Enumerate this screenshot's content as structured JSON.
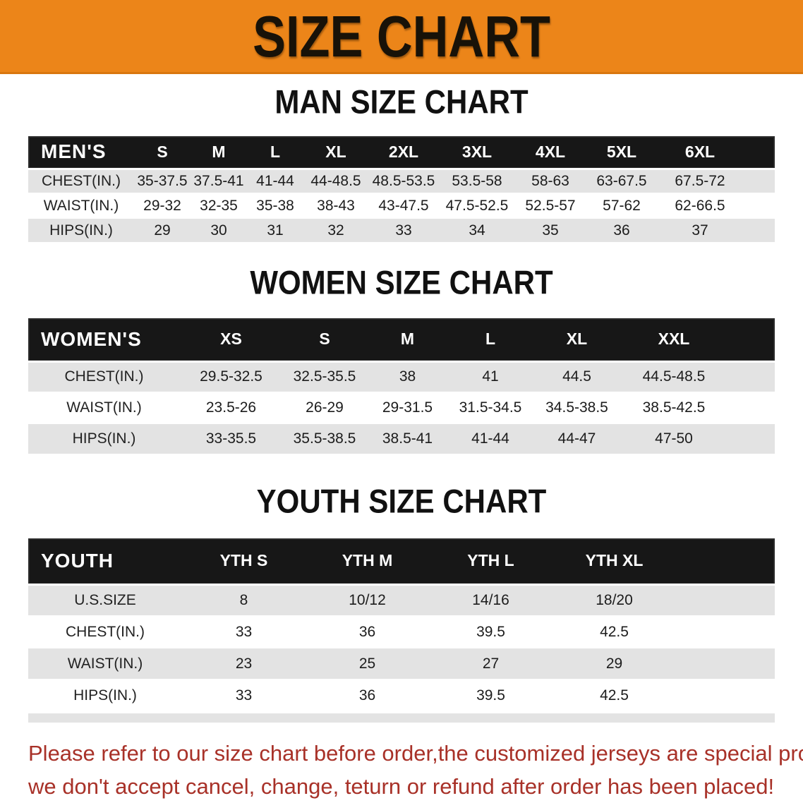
{
  "banner": {
    "title": "SIZE CHART",
    "bg_color": "#ec8519",
    "text_color": "#181208"
  },
  "sections": {
    "men": {
      "heading": "MAN SIZE CHART",
      "table": {
        "label": "MEN'S",
        "columns": [
          "S",
          "M",
          "L",
          "XL",
          "2XL",
          "3XL",
          "4XL",
          "5XL",
          "6XL"
        ],
        "rows": [
          {
            "label": "CHEST(IN.)",
            "values": [
              "35-37.5",
              "37.5-41",
              "41-44",
              "44-48.5",
              "48.5-53.5",
              "53.5-58",
              "58-63",
              "63-67.5",
              "67.5-72"
            ]
          },
          {
            "label": "WAIST(IN.)",
            "values": [
              "29-32",
              "32-35",
              "35-38",
              "38-43",
              "43-47.5",
              "47.5-52.5",
              "52.5-57",
              "57-62",
              "62-66.5"
            ]
          },
          {
            "label": "HIPS(IN.)",
            "values": [
              "29",
              "30",
              "31",
              "32",
              "33",
              "34",
              "35",
              "36",
              "37"
            ]
          }
        ]
      }
    },
    "women": {
      "heading": "WOMEN SIZE CHART",
      "table": {
        "label": "WOMEN'S",
        "columns": [
          "XS",
          "S",
          "M",
          "L",
          "XL",
          "XXL"
        ],
        "rows": [
          {
            "label": "CHEST(IN.)",
            "values": [
              "29.5-32.5",
              "32.5-35.5",
              "38",
              "41",
              "44.5",
              "44.5-48.5"
            ]
          },
          {
            "label": "WAIST(IN.)",
            "values": [
              "23.5-26",
              "26-29",
              "29-31.5",
              "31.5-34.5",
              "34.5-38.5",
              "38.5-42.5"
            ]
          },
          {
            "label": "HIPS(IN.)",
            "values": [
              "33-35.5",
              "35.5-38.5",
              "38.5-41",
              "41-44",
              "44-47",
              "47-50"
            ]
          }
        ]
      }
    },
    "youth": {
      "heading": "YOUTH SIZE CHART",
      "table": {
        "label": "YOUTH",
        "columns": [
          "YTH S",
          "YTH M",
          "YTH L",
          "YTH XL"
        ],
        "rows": [
          {
            "label": "U.S.SIZE",
            "values": [
              "8",
              "10/12",
              "14/16",
              "18/20"
            ]
          },
          {
            "label": "CHEST(IN.)",
            "values": [
              "33",
              "36",
              "39.5",
              "42.5"
            ]
          },
          {
            "label": "WAIST(IN.)",
            "values": [
              "23",
              "25",
              "27",
              "29"
            ]
          },
          {
            "label": "HIPS(IN.)",
            "values": [
              "33",
              "36",
              "39.5",
              "42.5"
            ]
          }
        ]
      }
    }
  },
  "footer": {
    "line1": "Please refer to our size chart before order,the customized jerseys are special products,",
    "line2": "we don't accept cancel, change, teturn or refund after order has been placed!",
    "text_color": "#a83128"
  }
}
